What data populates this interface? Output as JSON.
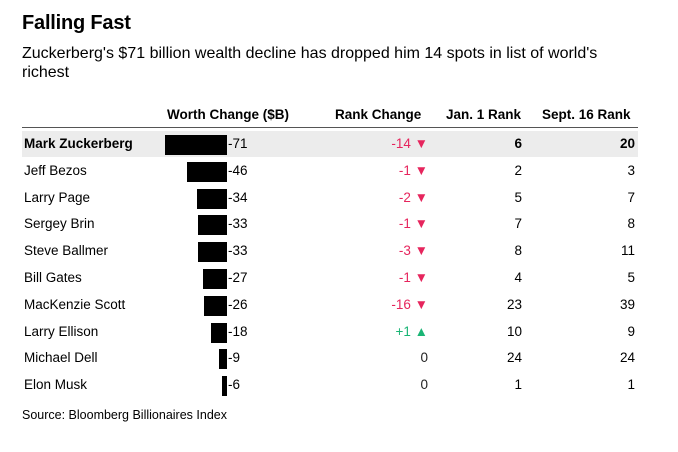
{
  "title": "Falling Fast",
  "subtitle": "Zuckerberg's $71 billion wealth decline has dropped him 14 spots in list of world's richest",
  "source": "Source: Bloomberg Billionaires Index",
  "colors": {
    "down": "#e6255d",
    "up": "#1ab575",
    "bar": "#000000",
    "highlight": "#ececec"
  },
  "chart_data": {
    "type": "table",
    "title": "Falling Fast",
    "columns": [
      "Worth Change ($B)",
      "Rank Change",
      "Jan. 1 Rank",
      "Sept. 16 Rank"
    ],
    "rows": [
      {
        "name": "Mark Zuckerberg",
        "worth_change": -71,
        "worth_label": "-71",
        "rank_change": -14,
        "rank_label": "-14 ▼",
        "jan1_rank": 6,
        "sept16_rank": 20,
        "highlight": true
      },
      {
        "name": "Jeff Bezos",
        "worth_change": -46,
        "worth_label": "-46",
        "rank_change": -1,
        "rank_label": "-1 ▼",
        "jan1_rank": 2,
        "sept16_rank": 3
      },
      {
        "name": "Larry Page",
        "worth_change": -34,
        "worth_label": "-34",
        "rank_change": -2,
        "rank_label": "-2 ▼",
        "jan1_rank": 5,
        "sept16_rank": 7
      },
      {
        "name": "Sergey Brin",
        "worth_change": -33,
        "worth_label": "-33",
        "rank_change": -1,
        "rank_label": "-1 ▼",
        "jan1_rank": 7,
        "sept16_rank": 8
      },
      {
        "name": "Steve Ballmer",
        "worth_change": -33,
        "worth_label": "-33",
        "rank_change": -3,
        "rank_label": "-3 ▼",
        "jan1_rank": 8,
        "sept16_rank": 11
      },
      {
        "name": "Bill Gates",
        "worth_change": -27,
        "worth_label": "-27",
        "rank_change": -1,
        "rank_label": "-1 ▼",
        "jan1_rank": 4,
        "sept16_rank": 5
      },
      {
        "name": "MacKenzie Scott",
        "worth_change": -26,
        "worth_label": "-26",
        "rank_change": -16,
        "rank_label": "-16 ▼",
        "jan1_rank": 23,
        "sept16_rank": 39
      },
      {
        "name": "Larry Ellison",
        "worth_change": -18,
        "worth_label": "-18",
        "rank_change": 1,
        "rank_label": "+1 ▲",
        "jan1_rank": 10,
        "sept16_rank": 9
      },
      {
        "name": "Michael Dell",
        "worth_change": -9,
        "worth_label": "-9",
        "rank_change": 0,
        "rank_label": "0",
        "jan1_rank": 24,
        "sept16_rank": 24
      },
      {
        "name": "Elon Musk",
        "worth_change": -6,
        "worth_label": "-6",
        "rank_change": 0,
        "rank_label": "0",
        "jan1_rank": 1,
        "sept16_rank": 1
      }
    ]
  }
}
